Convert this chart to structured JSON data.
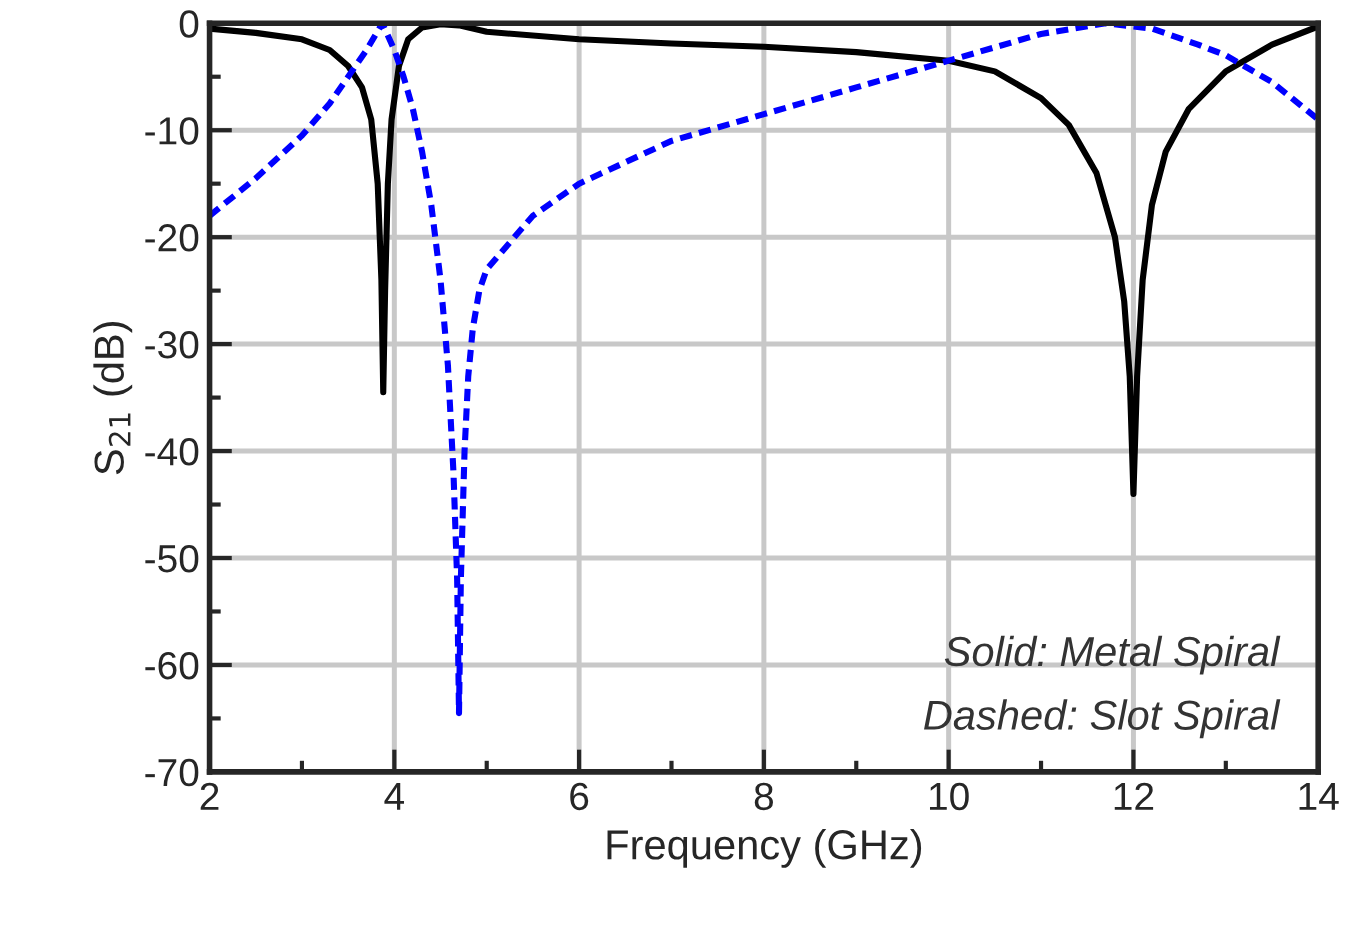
{
  "chart_data": {
    "type": "line",
    "xlabel": "Frequency (GHz)",
    "ylabel": "S$_{21}$ (dB)",
    "xlim": [
      2,
      14
    ],
    "xticks": [
      2,
      4,
      6,
      8,
      10,
      12,
      14
    ],
    "ylim": [
      -70,
      0
    ],
    "yticks": [
      -70,
      -60,
      -50,
      -40,
      -30,
      -20,
      -10,
      0
    ],
    "grid": true,
    "series": [
      {
        "color": "#000000",
        "line_style": "solid",
        "x": [
          2,
          2.5,
          3,
          3.3,
          3.5,
          3.65,
          3.75,
          3.82,
          3.86,
          3.88,
          3.9,
          3.93,
          3.97,
          4.05,
          4.15,
          4.3,
          4.5,
          4.7,
          5,
          6,
          7,
          8,
          9,
          10,
          10.5,
          11,
          11.3,
          11.6,
          11.8,
          11.9,
          11.96,
          12.0,
          12.04,
          12.1,
          12.2,
          12.35,
          12.6,
          13,
          13.5,
          14
        ],
        "values": [
          -0.5,
          -0.9,
          -1.5,
          -2.5,
          -4,
          -6,
          -9,
          -15,
          -24,
          -34.5,
          -25,
          -15,
          -9,
          -4,
          -1.5,
          -0.4,
          -0.1,
          -0.2,
          -0.8,
          -1.5,
          -1.9,
          -2.2,
          -2.7,
          -3.5,
          -4.5,
          -7,
          -9.5,
          -14,
          -20,
          -26,
          -33,
          -44,
          -33,
          -24,
          -17,
          -12,
          -8,
          -4.5,
          -2,
          -0.3
        ]
      },
      {
        "color": "#0000ff",
        "line_style": "dashed",
        "x": [
          2,
          2.5,
          3,
          3.3,
          3.5,
          3.7,
          3.87,
          4.0,
          4.1,
          4.2,
          4.3,
          4.4,
          4.5,
          4.58,
          4.64,
          4.68,
          4.7,
          4.72,
          4.76,
          4.8,
          4.85,
          4.92,
          5.0,
          5.25,
          5.5,
          6,
          7,
          8,
          9,
          10,
          11,
          11.7,
          12.2,
          12.7,
          13,
          13.5,
          14
        ],
        "values": [
          -18,
          -14.5,
          -10.5,
          -7.5,
          -5,
          -2.5,
          0,
          -2.5,
          -5,
          -8,
          -12,
          -17,
          -24,
          -32,
          -42,
          -52,
          -64.5,
          -52,
          -40,
          -33,
          -28.5,
          -25,
          -23,
          -20.5,
          -18,
          -15,
          -11,
          -8.5,
          -6,
          -3.5,
          -1,
          0,
          -0.5,
          -2,
          -3,
          -5.5,
          -9
        ]
      }
    ],
    "annotations": [
      "Solid: Metal Spiral",
      "Dashed: Slot Spiral"
    ]
  }
}
